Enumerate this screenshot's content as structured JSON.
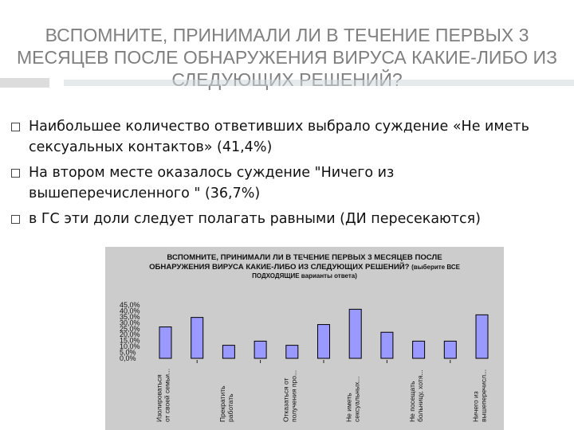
{
  "slide": {
    "title": "ВСПОМНИТЕ, ПРИНИМАЛИ ЛИ В ТЕЧЕНИЕ ПЕРВЫХ 3 МЕСЯЦЕВ ПОСЛЕ ОБНАРУЖЕНИЯ ВИРУСА КАКИЕ-ЛИБО ИЗ СЛЕДУЮЩИХ РЕШЕНИЙ?",
    "bullets": [
      "Наибольшее количество ответивших выбрало суждение «Не иметь сексуальных контактов» (41,4%)",
      "На втором месте оказалось суждение \"Ничего из вышеперечисленного \" (36,7%)",
      "в ГС эти доли следует полагать равными (ДИ пересекаются)"
    ]
  },
  "colors": {
    "bar_fill": "#9999ff",
    "bar_stroke": "#000000",
    "chart_bg": "#cccccc",
    "title_gray": "#7f7f7f"
  },
  "chart_data": {
    "type": "bar",
    "title_main": "ВСПОМНИТЕ, ПРИНИМАЛИ ЛИ В ТЕЧЕНИЕ ПЕРВЫХ 3 МЕСЯЦЕВ ПОСЛЕ ОБНАРУЖЕНИЯ ВИРУСА КАКИЕ-ЛИБО ИЗ СЛЕДУЮЩИХ",
    "title_tail": "РЕШЕНИЙ?",
    "title_note": "(выберите ВСЕ ПОДХОДЯЩИЕ варианты ответа)",
    "y_ticks": [
      "45,0%",
      "40,0%",
      "35,0%",
      "30,0%",
      "25,0%",
      "20,0%",
      "15,0%",
      "10,0%",
      "5,0%",
      "0,0%"
    ],
    "ylim": [
      0,
      45
    ],
    "values": [
      26.5,
      34.5,
      11,
      14.5,
      11,
      28.5,
      41.4,
      22,
      14.5,
      14.5,
      36.7
    ],
    "category_labels": [
      {
        "index": 0,
        "line1": "Изолироваться",
        "line2": "от своей семьи..."
      },
      {
        "index": 2,
        "line1": "Прекратить",
        "line2": "работать"
      },
      {
        "index": 4,
        "line1": "Отказаться от",
        "line2": "получения про..."
      },
      {
        "index": 6,
        "line1": "Не иметь",
        "line2": "сексуальных..."
      },
      {
        "index": 8,
        "line1": "Не посещать",
        "line2": "больницу, хотя..."
      },
      {
        "index": 10,
        "line1": "Ничего из",
        "line2": "вышеперечисл..."
      }
    ]
  }
}
